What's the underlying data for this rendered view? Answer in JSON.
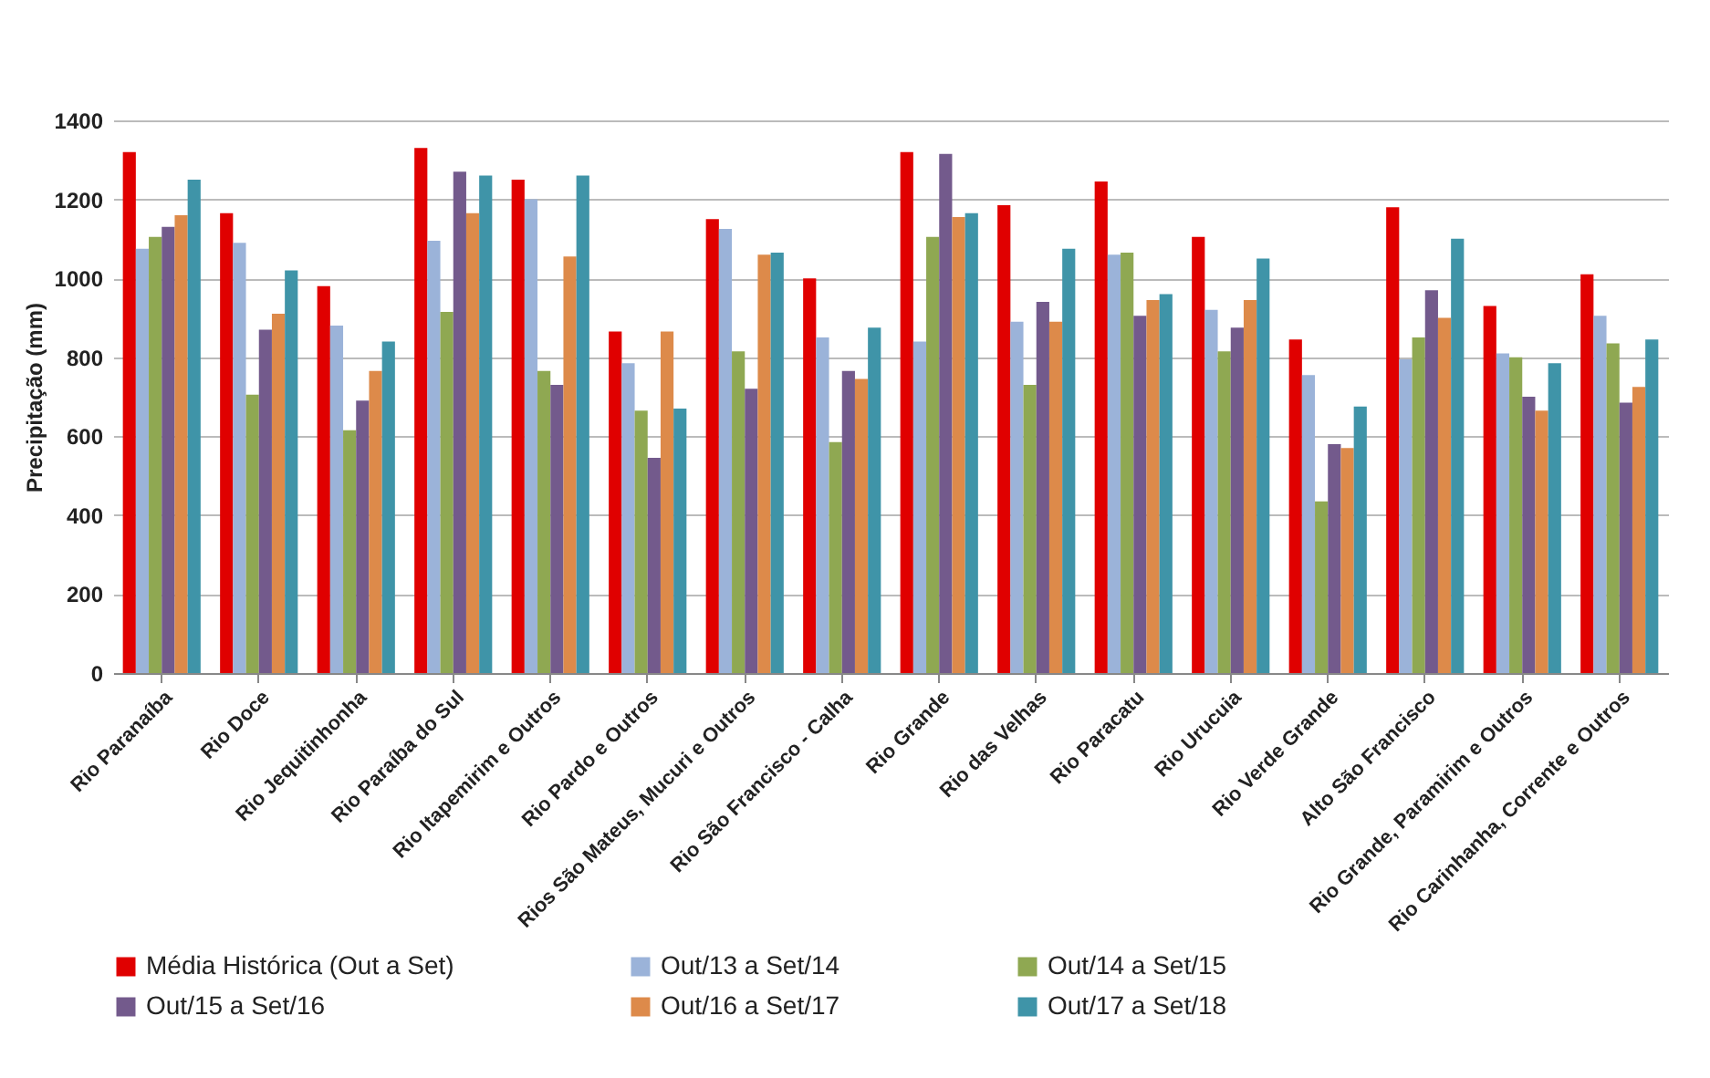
{
  "chart_data": {
    "type": "bar",
    "ylabel": "Precipitação (mm)",
    "categories": [
      "Rio Paranaíba",
      "Rio Doce",
      "Rio Jequitinhonha",
      "Rio Paraíba do Sul",
      "Rio Itapemirim e Outros",
      "Rio Pardo e Outros",
      "Rios São Mateus, Mucuri e Outros",
      "Rio São Francisco - Calha",
      "Rio Grande",
      "Rio das Velhas",
      "Rio Paracatu",
      "Rio Urucuia",
      "Rio Verde Grande",
      "Alto São Francisco",
      "Rio Grande, Paramirim e Outros",
      "Rio Carinhanha, Corrente e Outros"
    ],
    "series": [
      {
        "name": "Média Histórica (Out a Set)",
        "color": "#e00000",
        "values": [
          1320,
          1165,
          980,
          1330,
          1250,
          865,
          1150,
          1000,
          1320,
          1185,
          1245,
          1105,
          845,
          1180,
          930,
          1010
        ]
      },
      {
        "name": "Out/13 a Set/14",
        "color": "#9bb3d9",
        "values": [
          1075,
          1090,
          880,
          1095,
          1200,
          785,
          1125,
          850,
          840,
          890,
          1060,
          920,
          755,
          795,
          810,
          905
        ]
      },
      {
        "name": "Out/14 a Set/15",
        "color": "#8fa852",
        "values": [
          1105,
          705,
          615,
          915,
          765,
          665,
          815,
          585,
          1105,
          730,
          1065,
          815,
          435,
          850,
          800,
          835
        ]
      },
      {
        "name": "Out/15 a Set/16",
        "color": "#735a8c",
        "values": [
          1130,
          870,
          690,
          1270,
          730,
          545,
          720,
          765,
          1315,
          940,
          905,
          875,
          580,
          970,
          700,
          685
        ]
      },
      {
        "name": "Out/16 a Set/17",
        "color": "#dd8a4a",
        "values": [
          1160,
          910,
          765,
          1165,
          1055,
          865,
          1060,
          745,
          1155,
          890,
          945,
          945,
          570,
          900,
          665,
          725
        ]
      },
      {
        "name": "Out/17 a Set/18",
        "color": "#3f94a8",
        "values": [
          1250,
          1020,
          840,
          1260,
          1260,
          670,
          1065,
          875,
          1165,
          1075,
          960,
          1050,
          675,
          1100,
          785,
          845
        ]
      }
    ],
    "ylim": [
      0,
      1400
    ],
    "yticks": [
      0,
      200,
      400,
      600,
      800,
      1000,
      1200,
      1400
    ],
    "grid": "y",
    "legend": "bottom"
  }
}
